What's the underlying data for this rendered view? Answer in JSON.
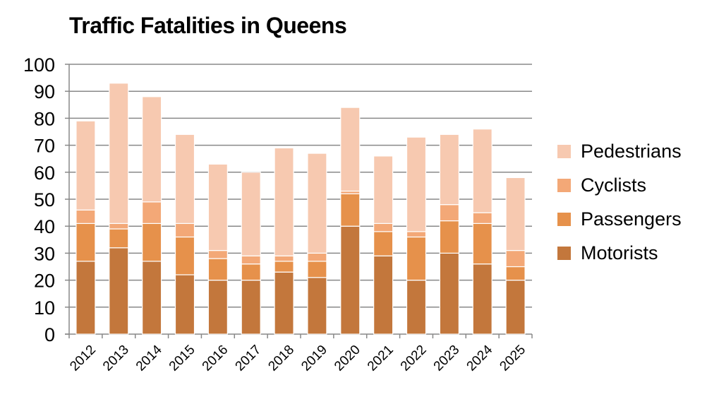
{
  "chart_data": {
    "type": "bar",
    "stacked": true,
    "title": "Traffic Fatalities in Queens",
    "categories": [
      "2012",
      "2013",
      "2014",
      "2015",
      "2016",
      "2017",
      "2018",
      "2019",
      "2020",
      "2021",
      "2022",
      "2023",
      "2024",
      "2025"
    ],
    "series": [
      {
        "name": "Motorists",
        "color": "#c3773c",
        "values": [
          27,
          32,
          27,
          22,
          20,
          20,
          23,
          21,
          40,
          29,
          20,
          30,
          26,
          20
        ]
      },
      {
        "name": "Passengers",
        "color": "#e6914b",
        "values": [
          14,
          7,
          14,
          14,
          8,
          6,
          4,
          6,
          12,
          9,
          16,
          12,
          15,
          5
        ]
      },
      {
        "name": "Cyclists",
        "color": "#f3a877",
        "values": [
          5,
          2,
          8,
          5,
          3,
          3,
          2,
          3,
          1,
          3,
          2,
          6,
          4,
          6
        ]
      },
      {
        "name": "Pedestrians",
        "color": "#f7c9b0",
        "values": [
          33,
          52,
          39,
          33,
          32,
          31,
          40,
          37,
          31,
          25,
          35,
          26,
          31,
          27
        ]
      }
    ],
    "ylim": [
      0,
      100
    ],
    "yticks": [
      "0",
      "10",
      "20",
      "30",
      "40",
      "50",
      "60",
      "70",
      "80",
      "90",
      "100"
    ],
    "grid": true,
    "legend_position": "right"
  }
}
